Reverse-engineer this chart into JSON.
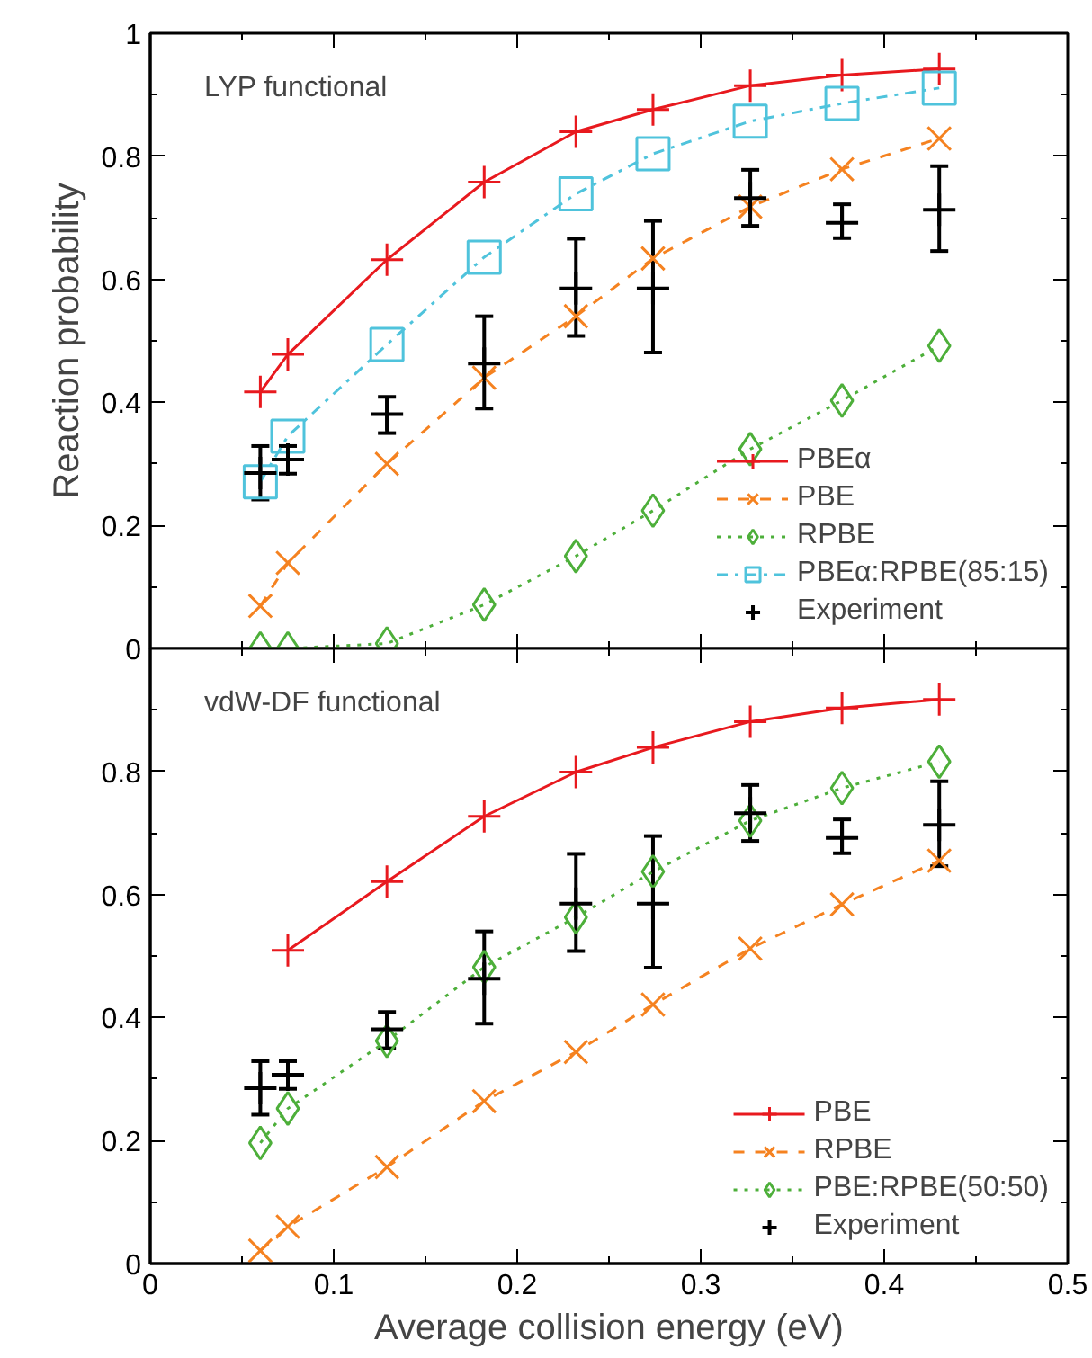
{
  "chart_data": [
    {
      "type": "line",
      "annotations": [
        "LYP functional"
      ],
      "ylabel": "Reaction probability",
      "xlim": [
        0,
        0.5
      ],
      "xticks": [
        0,
        {
          "value": 0.05,
          "label": null
        },
        0.1,
        {
          "value": 0.15,
          "label": null
        },
        0.2,
        {
          "value": 0.25,
          "label": null
        },
        0.3,
        {
          "value": 0.35,
          "label": null
        },
        0.4,
        {
          "value": 0.45,
          "label": null
        },
        0.5
      ],
      "ylim": [
        0,
        1
      ],
      "yticks": [
        0,
        {
          "value": 0.1,
          "label": null
        },
        0.2,
        {
          "value": 0.3,
          "label": null
        },
        0.4,
        {
          "value": 0.5,
          "label": null
        },
        0.6,
        {
          "value": 0.7,
          "label": null
        },
        0.8,
        {
          "value": 0.9,
          "label": null
        },
        1
      ],
      "tick_labels": "y",
      "grid": false,
      "legend": "bottom right",
      "series": [
        {
          "name": "PBEα",
          "color": "#e8191e",
          "marker": "cross",
          "line_style": "solid",
          "x": [
            0.06,
            0.075,
            0.129,
            0.182,
            0.232,
            0.274,
            0.327,
            0.377,
            0.43
          ],
          "values": [
            0.417,
            0.478,
            0.632,
            0.758,
            0.84,
            0.876,
            0.915,
            0.932,
            0.942
          ]
        },
        {
          "name": "PBE",
          "color": "#f58220",
          "marker": "x",
          "line_style": "dashed",
          "x": [
            0.06,
            0.075,
            0.129,
            0.182,
            0.232,
            0.274,
            0.327,
            0.377,
            0.43
          ],
          "values": [
            0.069,
            0.139,
            0.3,
            0.44,
            0.54,
            0.634,
            0.718,
            0.779,
            0.829
          ]
        },
        {
          "name": "RPBE",
          "color": "#4daf3a",
          "marker": "diamond",
          "line_style": "dotted",
          "x": [
            0.06,
            0.075,
            0.129,
            0.182,
            0.232,
            0.274,
            0.327,
            0.377,
            0.43
          ],
          "values": [
            0,
            0,
            0.008,
            0.071,
            0.15,
            0.224,
            0.324,
            0.403,
            0.492
          ]
        },
        {
          "name": "PBEα:RPBE(85:15)",
          "color": "#4fc3dc",
          "marker": "square",
          "line_style": "dashdot",
          "x": [
            0.06,
            0.075,
            0.129,
            0.182,
            0.232,
            0.274,
            0.327,
            0.377,
            0.43
          ],
          "values": [
            0.271,
            0.345,
            0.494,
            0.636,
            0.739,
            0.804,
            0.857,
            0.886,
            0.911
          ]
        },
        {
          "name": "Experiment",
          "type": "scatter",
          "color": "#000000",
          "marker": "cross",
          "x": [
            0.06,
            0.075,
            0.129,
            0.182,
            0.232,
            0.274,
            0.327,
            0.377,
            0.43
          ],
          "values": [
            0.285,
            0.307,
            0.381,
            0.463,
            0.585,
            0.585,
            0.732,
            0.692,
            0.713
          ],
          "errors": [
            [
              0.242,
              0.329
            ],
            [
              0.284,
              0.329
            ],
            [
              0.35,
              0.409
            ],
            [
              0.39,
              0.54
            ],
            [
              0.508,
              0.666
            ],
            [
              0.481,
              0.695
            ],
            [
              0.687,
              0.778
            ],
            [
              0.667,
              0.722
            ],
            [
              0.646,
              0.784
            ]
          ]
        }
      ]
    },
    {
      "type": "line",
      "annotations": [
        "vdW-DF functional"
      ],
      "xlabel": "Average collision energy (eV)",
      "xlim": [
        0,
        0.5
      ],
      "xticks": [
        0,
        {
          "value": 0.05,
          "label": null
        },
        0.1,
        {
          "value": 0.15,
          "label": null
        },
        0.2,
        {
          "value": 0.25,
          "label": null
        },
        0.3,
        {
          "value": 0.35,
          "label": null
        },
        0.4,
        {
          "value": 0.45,
          "label": null
        },
        0.5
      ],
      "ylim": [
        0,
        1
      ],
      "yticks": [
        0,
        {
          "value": 0.1,
          "label": null
        },
        0.2,
        {
          "value": 0.3,
          "label": null
        },
        0.4,
        {
          "value": 0.5,
          "label": null
        },
        0.6,
        {
          "value": 0.7,
          "label": null
        },
        0.8,
        {
          "value": 0.9,
          "label": null
        },
        {
          "value": 1,
          "label": null
        }
      ],
      "grid": false,
      "legend": "bottom right",
      "series": [
        {
          "name": "PBE",
          "color": "#e8191e",
          "marker": "cross",
          "line_style": "solid",
          "x": [
            0.075,
            0.129,
            0.182,
            0.232,
            0.274,
            0.327,
            0.377,
            0.43
          ],
          "values": [
            0.509,
            0.621,
            0.727,
            0.799,
            0.839,
            0.881,
            0.903,
            0.917
          ]
        },
        {
          "name": "RPBE",
          "color": "#f58220",
          "marker": "x",
          "line_style": "dashed",
          "x": [
            0.06,
            0.075,
            0.129,
            0.182,
            0.232,
            0.274,
            0.327,
            0.377,
            0.43
          ],
          "values": [
            0.021,
            0.06,
            0.157,
            0.264,
            0.344,
            0.421,
            0.512,
            0.584,
            0.655
          ]
        },
        {
          "name": "PBE:RPBE(50:50)",
          "color": "#4daf3a",
          "marker": "diamond",
          "line_style": "dotted",
          "x": [
            0.06,
            0.075,
            0.129,
            0.182,
            0.232,
            0.274,
            0.327,
            0.377,
            0.43
          ],
          "values": [
            0.196,
            0.252,
            0.362,
            0.482,
            0.563,
            0.637,
            0.72,
            0.773,
            0.816
          ]
        },
        {
          "name": "Experiment",
          "type": "scatter",
          "color": "#000000",
          "marker": "cross",
          "x": [
            0.06,
            0.075,
            0.129,
            0.182,
            0.232,
            0.274,
            0.327,
            0.377,
            0.43
          ],
          "values": [
            0.285,
            0.307,
            0.381,
            0.463,
            0.585,
            0.585,
            0.732,
            0.692,
            0.713
          ],
          "errors": [
            [
              0.242,
              0.329
            ],
            [
              0.284,
              0.329
            ],
            [
              0.35,
              0.409
            ],
            [
              0.39,
              0.54
            ],
            [
              0.508,
              0.666
            ],
            [
              0.481,
              0.695
            ],
            [
              0.687,
              0.778
            ],
            [
              0.667,
              0.722
            ],
            [
              0.646,
              0.784
            ]
          ]
        }
      ]
    }
  ]
}
